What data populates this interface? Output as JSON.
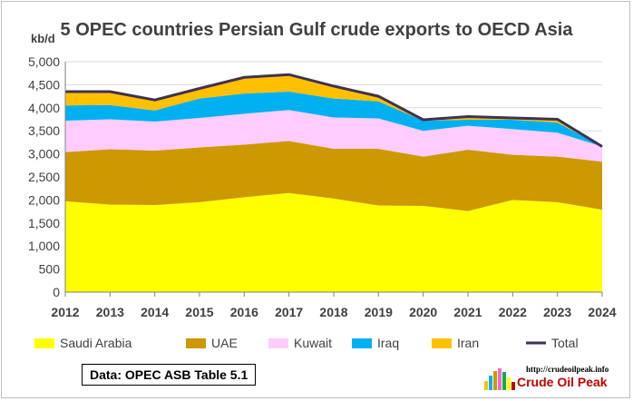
{
  "chart_data": {
    "type": "area",
    "stacked": true,
    "title": "5 OPEC countries Persian Gulf crude exports to OECD Asia",
    "ylabel": "kb/d",
    "xlabel": "",
    "categories": [
      "2012",
      "2013",
      "2014",
      "2015",
      "2016",
      "2017",
      "2018",
      "2019",
      "2020",
      "2021",
      "2022",
      "2023",
      "2024"
    ],
    "ylim": [
      0,
      5000
    ],
    "ytick_step": 500,
    "yticks": [
      "0",
      "500",
      "1,000",
      "1,500",
      "2,000",
      "2,500",
      "3,000",
      "3,500",
      "4,000",
      "4,500",
      "5,000"
    ],
    "grid": true,
    "legend_position": "bottom",
    "series": [
      {
        "name": "Saudi Arabia",
        "color": "#ffff00",
        "values": [
          1970,
          1900,
          1890,
          1950,
          2060,
          2150,
          2030,
          1880,
          1870,
          1760,
          2000,
          1950,
          1790
        ]
      },
      {
        "name": "UAE",
        "color": "#cc9900",
        "values": [
          1070,
          1200,
          1180,
          1190,
          1140,
          1130,
          1080,
          1230,
          1070,
          1330,
          980,
          990,
          1040
        ]
      },
      {
        "name": "Kuwait",
        "color": "#ffccff",
        "values": [
          680,
          650,
          630,
          640,
          670,
          670,
          680,
          660,
          560,
          520,
          560,
          520,
          330
        ]
      },
      {
        "name": "Iraq",
        "color": "#00b0f0",
        "values": [
          330,
          310,
          240,
          420,
          440,
          400,
          410,
          370,
          220,
          130,
          200,
          220,
          0
        ]
      },
      {
        "name": "Iran",
        "color": "#ffc000",
        "values": [
          300,
          290,
          230,
          220,
          350,
          370,
          270,
          110,
          20,
          70,
          40,
          70,
          0
        ]
      }
    ],
    "total": {
      "name": "Total",
      "color": "#403151",
      "values": [
        4350,
        4350,
        4170,
        4420,
        4660,
        4720,
        4470,
        4250,
        3740,
        3810,
        3780,
        3750,
        3160
      ]
    }
  },
  "source_note": "Data: OPEC ASB Table 5.1",
  "logo": {
    "url": "http://crudeoilpeak.info",
    "name": "Crude Oil Peak"
  }
}
